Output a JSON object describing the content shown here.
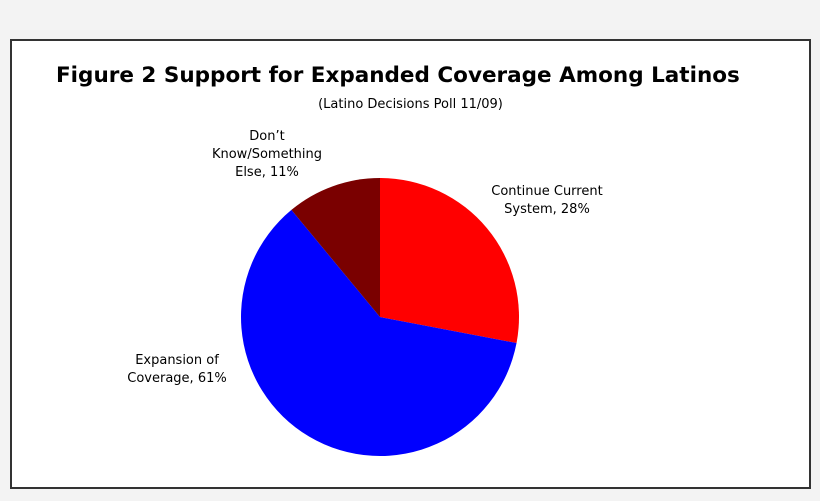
{
  "chart_data": {
    "type": "pie",
    "title": "Figure 2 Support for Expanded Coverage Among Latinos",
    "subtitle": "(Latino Decisions Poll 11/09)",
    "slices": [
      {
        "name": "Continue Current System",
        "value": 28,
        "color": "#ff0000",
        "label_lines": [
          "Continue Current",
          "System, 28%"
        ]
      },
      {
        "name": "Expansion of Coverage",
        "value": 61,
        "color": "#0000ff",
        "label_lines": [
          "Expansion of",
          "Coverage, 61%"
        ]
      },
      {
        "name": "Don’t Know/Something Else",
        "value": 11,
        "color": "#7a0000",
        "label_lines": [
          "Don’t",
          "Know/Something",
          "Else, 11%"
        ]
      }
    ],
    "start_angle": "12 o'clock",
    "direction": "clockwise"
  }
}
